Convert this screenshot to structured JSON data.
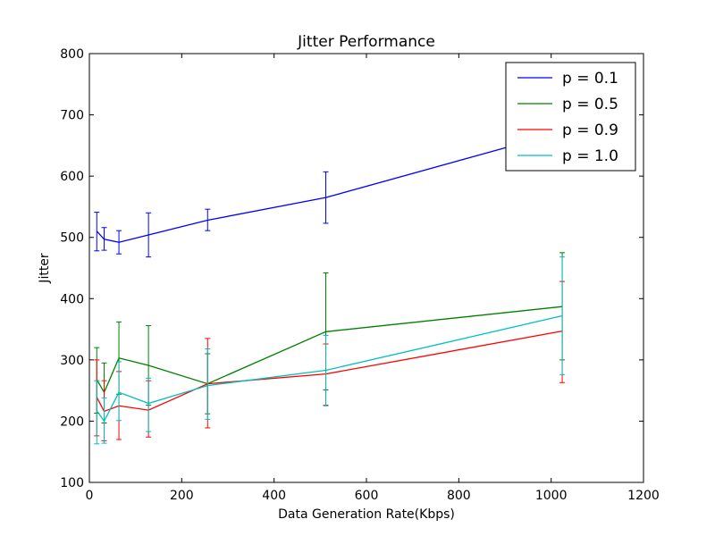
{
  "chart_data": {
    "type": "line",
    "title": "Jitter Performance",
    "xlabel": "Data Generation Rate(Kbps)",
    "ylabel": "Jitter",
    "xlim": [
      0,
      1200
    ],
    "ylim": [
      100,
      800
    ],
    "xticks": [
      0,
      200,
      400,
      600,
      800,
      1000,
      1200
    ],
    "yticks": [
      100,
      200,
      300,
      400,
      500,
      600,
      700,
      800
    ],
    "x": [
      16,
      32,
      64,
      128,
      256,
      512,
      1024
    ],
    "grid": false,
    "legend_position": "top-right",
    "series": [
      {
        "name": "p = 0.1",
        "color": "#0000ff",
        "values": [
          510,
          497,
          492,
          504,
          528,
          565,
          672
        ],
        "err_low": [
          478,
          479,
          473,
          468,
          511,
          523,
          672
        ],
        "err_high": [
          541,
          516,
          511,
          540,
          546,
          607,
          672
        ]
      },
      {
        "name": "p = 0.5",
        "color": "#008000",
        "values": [
          268,
          247,
          303,
          291,
          261,
          346,
          387
        ],
        "err_low": [
          213,
          197,
          244,
          226,
          212,
          251,
          300
        ],
        "err_high": [
          320,
          295,
          362,
          356,
          310,
          442,
          475
        ]
      },
      {
        "name": "p = 0.9",
        "color": "#ff0000",
        "values": [
          239,
          216,
          225,
          218,
          261,
          277,
          347
        ],
        "err_low": [
          176,
          168,
          170,
          174,
          189,
          226,
          263
        ],
        "err_high": [
          300,
          266,
          281,
          266,
          335,
          326,
          428
        ]
      },
      {
        "name": "p = 1.0",
        "color": "#00bfbf",
        "values": [
          217,
          200,
          247,
          229,
          258,
          283,
          372
        ],
        "err_low": [
          163,
          164,
          201,
          183,
          203,
          225,
          276
        ],
        "err_high": [
          266,
          238,
          297,
          270,
          318,
          340,
          468
        ]
      }
    ]
  }
}
